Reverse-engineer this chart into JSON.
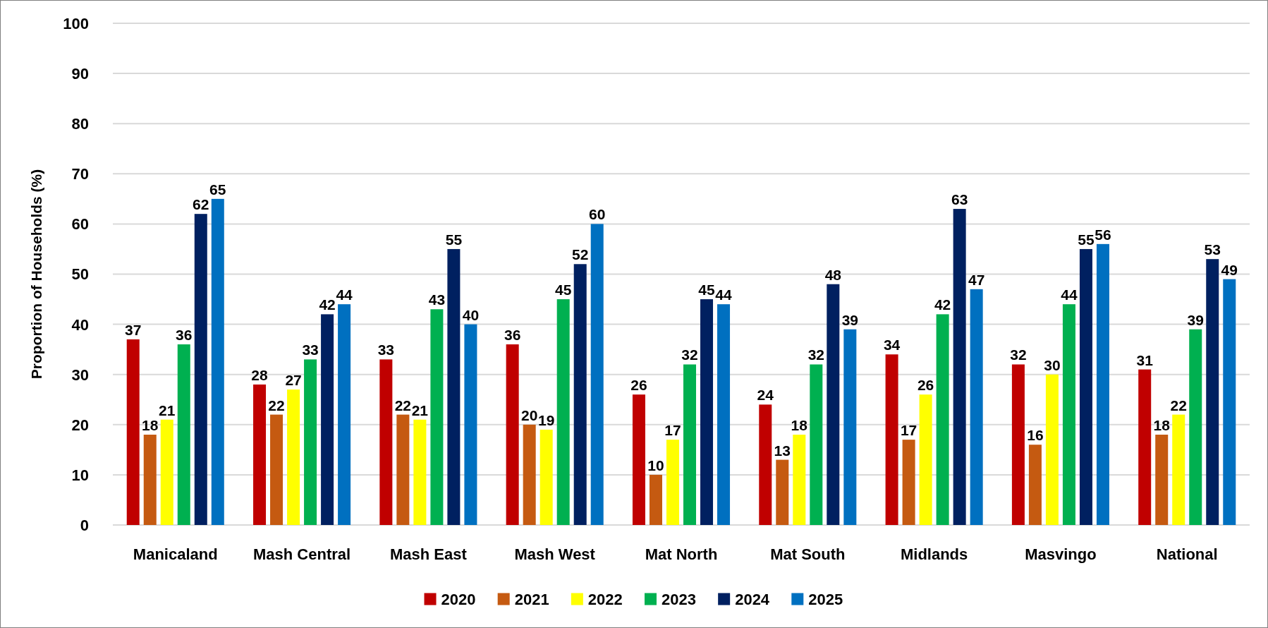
{
  "chart_data": {
    "type": "bar",
    "ylabel": "Proportion of Households (%)",
    "categories": [
      "Manicaland",
      "Mash Central",
      "Mash East",
      "Mash West",
      "Mat North",
      "Mat South",
      "Midlands",
      "Masvingo",
      "National"
    ],
    "series": [
      {
        "name": "2020",
        "color": "#c00000",
        "values": [
          37,
          28,
          33,
          36,
          26,
          24,
          34,
          32,
          31
        ]
      },
      {
        "name": "2021",
        "color": "#c55a11",
        "values": [
          18,
          22,
          22,
          20,
          10,
          13,
          17,
          16,
          18
        ]
      },
      {
        "name": "2022",
        "color": "#ffff00",
        "values": [
          21,
          27,
          21,
          19,
          17,
          18,
          26,
          30,
          22
        ]
      },
      {
        "name": "2023",
        "color": "#00b050",
        "values": [
          36,
          33,
          43,
          45,
          32,
          32,
          42,
          44,
          39
        ]
      },
      {
        "name": "2024",
        "color": "#002060",
        "values": [
          62,
          42,
          55,
          52,
          45,
          48,
          63,
          55,
          53
        ]
      },
      {
        "name": "2025",
        "color": "#0070c0",
        "values": [
          65,
          44,
          40,
          60,
          44,
          39,
          47,
          56,
          49
        ]
      }
    ],
    "ylim": [
      0,
      100
    ],
    "yticks": [
      0,
      10,
      20,
      30,
      40,
      50,
      60,
      70,
      80,
      90,
      100
    ],
    "grid": "y",
    "legend": "bottom",
    "data_labels": true
  }
}
